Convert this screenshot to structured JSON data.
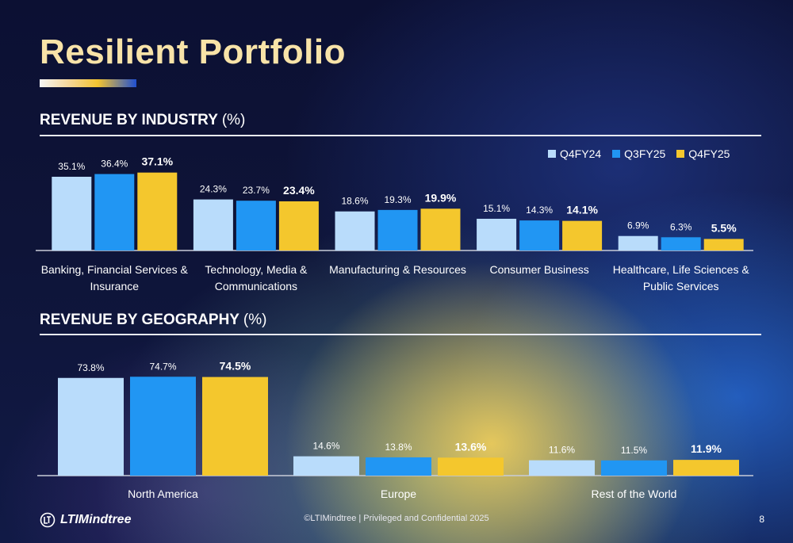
{
  "title": "Resilient Portfolio",
  "industry_section": {
    "label": "REVENUE BY INDUSTRY",
    "unit": "(%)"
  },
  "geography_section": {
    "label": "REVENUE BY GEOGRAPHY",
    "unit": "(%)"
  },
  "legend": [
    {
      "name": "Q4FY24",
      "color": "#b9dcfb"
    },
    {
      "name": "Q3FY25",
      "color": "#2196f3"
    },
    {
      "name": "Q4FY25",
      "color": "#f4c72d"
    }
  ],
  "chart_data": [
    {
      "type": "bar",
      "title": "REVENUE BY INDUSTRY (%)",
      "categories": [
        "Banking, Financial Services & Insurance",
        "Technology, Media & Communications",
        "Manufacturing & Resources",
        "Consumer Business",
        "Healthcare, Life Sciences & Public Services"
      ],
      "category_lines": [
        [
          "Banking, Financial Services &",
          "Insurance"
        ],
        [
          "Technology, Media &",
          "Communications"
        ],
        [
          "Manufacturing & Resources"
        ],
        [
          "Consumer Business"
        ],
        [
          "Healthcare, Life Sciences &",
          "Public Services"
        ]
      ],
      "series": [
        {
          "name": "Q4FY24",
          "values": [
            35.1,
            24.3,
            18.6,
            15.1,
            6.9
          ],
          "labels": [
            "35.1%",
            "24.3%",
            "18.6%",
            "15.1%",
            "6.9%"
          ]
        },
        {
          "name": "Q3FY25",
          "values": [
            36.4,
            23.7,
            19.3,
            14.3,
            6.3
          ],
          "labels": [
            "36.4%",
            "23.7%",
            "19.3%",
            "14.3%",
            "6.3%"
          ]
        },
        {
          "name": "Q4FY25",
          "values": [
            37.1,
            23.4,
            19.9,
            14.1,
            5.5
          ],
          "labels": [
            "37.1%",
            "23.4%",
            "19.9%",
            "14.1%",
            "5.5%"
          ]
        }
      ],
      "legend_position": "top-right",
      "grid": false
    },
    {
      "type": "bar",
      "title": "REVENUE BY GEOGRAPHY (%)",
      "categories": [
        "North America",
        "Europe",
        "Rest of the World"
      ],
      "category_lines": [
        [
          "North America"
        ],
        [
          "Europe"
        ],
        [
          "Rest of the World"
        ]
      ],
      "series": [
        {
          "name": "Q4FY24",
          "values": [
            73.8,
            14.6,
            11.6
          ],
          "labels": [
            "73.8%",
            "14.6%",
            "11.6%"
          ]
        },
        {
          "name": "Q3FY25",
          "values": [
            74.7,
            13.8,
            11.5
          ],
          "labels": [
            "74.7%",
            "13.8%",
            "11.5%"
          ]
        },
        {
          "name": "Q4FY25",
          "values": [
            74.5,
            13.6,
            11.9
          ],
          "labels": [
            "74.5%",
            "13.6%",
            "11.9%"
          ]
        }
      ],
      "legend_position": "none",
      "grid": false
    }
  ],
  "footer": {
    "brand": "LTIMindtree",
    "confidential": "©LTIMindtree | Privileged and Confidential 2025",
    "page": "8"
  }
}
